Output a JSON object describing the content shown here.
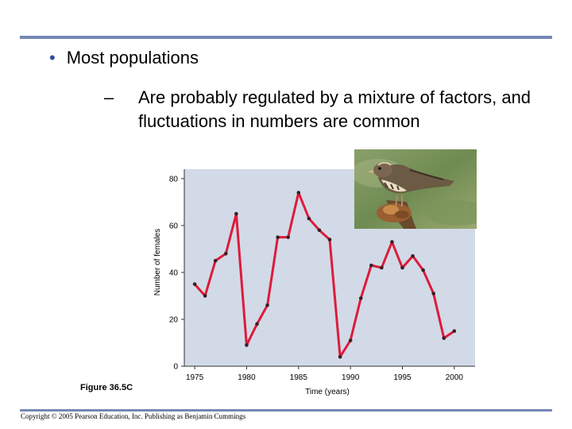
{
  "slide": {
    "bullet": "Most populations",
    "sub_dash": "–",
    "sub_text": "Are probably regulated by a mixture of factors, and fluctuations in numbers are common",
    "figure_label": "Figure 36.5C",
    "copyright": "Copyright © 2005 Pearson Education, Inc. Publishing as Benjamin Cummings"
  },
  "colors": {
    "rule": "#7587b4",
    "plot_bg": "#d2dae7",
    "line": "#dd1b3a",
    "marker": "#3a1f24"
  },
  "chart_data": {
    "type": "line",
    "title": "",
    "xlabel": "Time (years)",
    "ylabel": "Number of females",
    "xlim": [
      1974,
      2002
    ],
    "ylim": [
      0,
      84
    ],
    "xticks": [
      1975,
      1980,
      1985,
      1990,
      1995,
      2000
    ],
    "yticks": [
      0,
      20,
      40,
      60,
      80
    ],
    "grid": false,
    "series": [
      {
        "name": "",
        "x": [
          1975,
          1976,
          1977,
          1978,
          1979,
          1980,
          1981,
          1982,
          1983,
          1984,
          1985,
          1986,
          1987,
          1988,
          1989,
          1990,
          1991,
          1992,
          1993,
          1994,
          1995,
          1996,
          1997,
          1998,
          1999,
          2000
        ],
        "y": [
          35,
          30,
          45,
          48,
          65,
          9,
          18,
          26,
          55,
          55,
          74,
          63,
          58,
          54,
          4,
          11,
          29,
          43,
          42,
          53,
          42,
          47,
          41,
          31,
          12,
          15
        ]
      }
    ]
  }
}
